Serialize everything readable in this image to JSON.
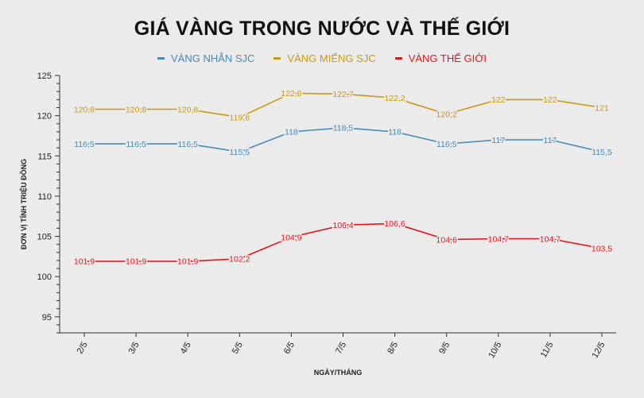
{
  "title": "GIÁ VÀNG TRONG NƯỚC VÀ THẾ GIỚI",
  "chart_data": {
    "type": "line",
    "title": "GIÁ VÀNG TRONG NƯỚC VÀ THẾ GIỚI",
    "xlabel": "NGÀY/THÁNG",
    "ylabel": "ĐƠN VỊ TÍNH TRIỆU ĐỒNG",
    "categories": [
      "2/5",
      "3/5",
      "4/5",
      "5/5",
      "6/5",
      "7/5",
      "8/5",
      "9/5",
      "10/5",
      "11/5",
      "12/5"
    ],
    "ylim": [
      93,
      125
    ],
    "yticks": [
      95,
      100,
      105,
      110,
      115,
      120,
      125
    ],
    "grid": false,
    "legend_position": "top-center",
    "series": [
      {
        "name": "VÀNG NHẪN SJC",
        "color": "#4a8ab5",
        "values": [
          116.5,
          116.5,
          116.5,
          115.5,
          118,
          118.5,
          118,
          116.5,
          117,
          117,
          115.5
        ],
        "labels": [
          "116,5",
          "116,5",
          "116,5",
          "115,5",
          "118",
          "118,5",
          "118",
          "116,5",
          "117",
          "117",
          "115,5"
        ]
      },
      {
        "name": "VÀNG MIẾNG SJC",
        "color": "#c99a12",
        "values": [
          120.8,
          120.8,
          120.8,
          119.8,
          122.8,
          122.7,
          122.2,
          120.2,
          122,
          122,
          121
        ],
        "labels": [
          "120,8",
          "120,8",
          "120,8",
          "119,8",
          "122,8",
          "122,7",
          "122,2",
          "120,2",
          "122",
          "122",
          "121"
        ]
      },
      {
        "name": "VÀNG THẾ GIỚI",
        "color": "#e8141c",
        "values": [
          101.9,
          101.9,
          101.9,
          102.2,
          104.9,
          106.4,
          106.6,
          104.6,
          104.7,
          104.7,
          103.5
        ],
        "labels": [
          "101,9",
          "101,9",
          "101,9",
          "102,2",
          "104,9",
          "106,4",
          "106,6",
          "104,6",
          "104,7",
          "104,7",
          "103,5"
        ]
      }
    ]
  }
}
